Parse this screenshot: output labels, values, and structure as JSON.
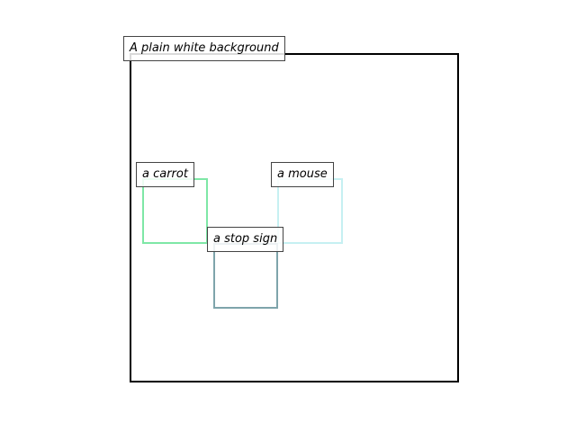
{
  "background": {
    "label": "A plain white background",
    "border_color": "#000000"
  },
  "objects": [
    {
      "key": "carrot",
      "label": "a carrot",
      "color": "#7ee7a6"
    },
    {
      "key": "mouse",
      "label": "a mouse",
      "color": "#c6f0f2"
    },
    {
      "key": "stop_sign",
      "label": "a stop sign",
      "color": "#7ea4ab"
    }
  ]
}
